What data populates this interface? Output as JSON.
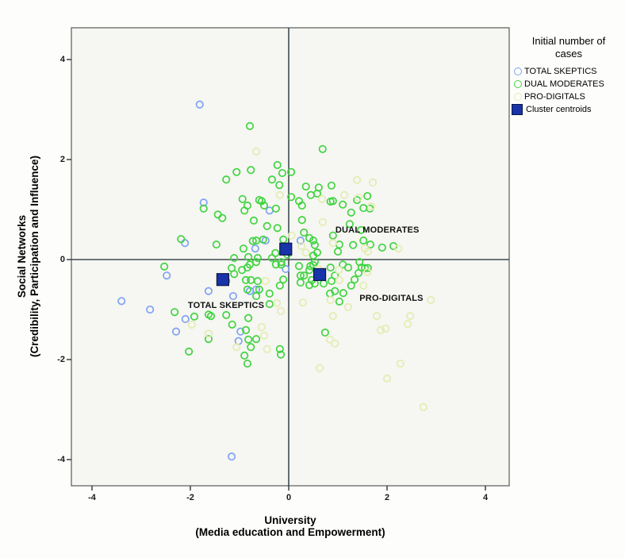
{
  "colors": {
    "skeptics": "#7fa3f2",
    "moderates": "#41d441",
    "digitals": "#e3edb2",
    "centroid": "#1834a8",
    "centroid_border": "#0a1747",
    "axis_line": "#3d4c52",
    "frame": "#5a5a5a",
    "plot_bg": "#f6f6f2",
    "text": "#000000"
  },
  "legend": {
    "title_line1": "Initial number of",
    "title_line2": "cases",
    "items": [
      {
        "label": "TOTAL SKEPTICS",
        "marker": "open-circle",
        "color": "#7fa3f2"
      },
      {
        "label": "DUAL MODERATES",
        "marker": "open-circle",
        "color": "#41d441"
      },
      {
        "label": "PRO-DIGITALS",
        "marker": "open-circle",
        "color": "#e3edb2"
      },
      {
        "label": "Cluster centroids",
        "marker": "filled-square",
        "color": "#1834a8"
      }
    ]
  },
  "axes": {
    "x_title_line1": "University",
    "x_title_line2": "(Media education and Empowerment)",
    "y_title_line1": "Social Networks",
    "y_title_line2": "(Credibility, Participation and Influence)"
  },
  "chart_data": {
    "type": "scatter",
    "xlabel": "University (Media education and Empowerment)",
    "ylabel": "Social Networks (Credibility, Participation and Influence)",
    "xlim": [
      -4.4,
      4.5
    ],
    "ylim": [
      -4.6,
      4.65
    ],
    "xticks": [
      -4,
      -2,
      0,
      2,
      4
    ],
    "yticks": [
      -4,
      -2,
      0,
      2,
      4
    ],
    "reference_lines": {
      "x": 0,
      "y": 0
    },
    "grid": false,
    "legend_position": "top-right",
    "annotations": [
      {
        "text": "DUAL MODERATES",
        "x": 0.95,
        "y": 0.59
      },
      {
        "text": "TOTAL SKEPTICS",
        "x": -2.05,
        "y": -0.92
      },
      {
        "text": "PRO-DIGITALS",
        "x": 1.44,
        "y": -0.78
      }
    ],
    "series": [
      {
        "name": "TOTAL SKEPTICS",
        "marker": "open-circle",
        "color": "#7fa3f2",
        "points": [
          [
            -1.81,
            3.1
          ],
          [
            -1.73,
            1.14
          ],
          [
            -2.11,
            0.33
          ],
          [
            -2.48,
            -0.32
          ],
          [
            -1.63,
            -0.63
          ],
          [
            -3.4,
            -0.83
          ],
          [
            -2.82,
            -1.0
          ],
          [
            -2.1,
            -1.19
          ],
          [
            -2.29,
            -1.44
          ],
          [
            -0.39,
            0.98
          ],
          [
            -0.47,
            0.38
          ],
          [
            0.24,
            0.38
          ],
          [
            -0.68,
            0.22
          ],
          [
            -0.79,
            -0.63
          ],
          [
            -1.13,
            -0.73
          ],
          [
            -0.66,
            -0.6
          ],
          [
            -0.98,
            -1.44
          ],
          [
            -1.02,
            -1.63
          ],
          [
            -1.16,
            -3.94
          ],
          [
            -0.06,
            -0.19
          ]
        ]
      },
      {
        "name": "DUAL MODERATES",
        "marker": "open-circle",
        "color": "#41d441",
        "points": [
          [
            -0.79,
            2.67
          ],
          [
            0.69,
            2.21
          ],
          [
            -1.06,
            1.75
          ],
          [
            -0.77,
            1.79
          ],
          [
            -0.23,
            1.89
          ],
          [
            -1.27,
            1.6
          ],
          [
            -0.34,
            1.6
          ],
          [
            -0.13,
            1.73
          ],
          [
            0.05,
            1.75
          ],
          [
            -0.19,
            1.49
          ],
          [
            0.35,
            1.46
          ],
          [
            0.87,
            1.48
          ],
          [
            0.61,
            1.44
          ],
          [
            -0.94,
            1.21
          ],
          [
            -0.55,
            1.17
          ],
          [
            0.05,
            1.25
          ],
          [
            0.21,
            1.17
          ],
          [
            0.45,
            1.29
          ],
          [
            0.58,
            1.32
          ],
          [
            0.85,
            1.16
          ],
          [
            1.6,
            1.27
          ],
          [
            -0.84,
            1.08
          ],
          [
            -0.6,
            1.19
          ],
          [
            -0.5,
            1.08
          ],
          [
            -0.26,
            1.02
          ],
          [
            0.27,
            1.08
          ],
          [
            0.9,
            1.17
          ],
          [
            1.1,
            1.1
          ],
          [
            1.39,
            1.19
          ],
          [
            1.52,
            1.03
          ],
          [
            1.27,
            0.94
          ],
          [
            -1.35,
            0.83
          ],
          [
            -0.9,
            0.98
          ],
          [
            -0.71,
            0.78
          ],
          [
            -0.44,
            0.67
          ],
          [
            -0.23,
            0.63
          ],
          [
            -1.44,
            0.9
          ],
          [
            -1.73,
            1.02
          ],
          [
            -1.47,
            0.3
          ],
          [
            -2.19,
            0.41
          ],
          [
            -0.52,
            0.4
          ],
          [
            -0.66,
            0.38
          ],
          [
            -0.11,
            0.4
          ],
          [
            0.27,
            0.79
          ],
          [
            0.31,
            0.54
          ],
          [
            0.42,
            0.43
          ],
          [
            0.5,
            0.38
          ],
          [
            0.53,
            0.29
          ],
          [
            0.58,
            0.14
          ],
          [
            0.5,
            0.08
          ],
          [
            0.9,
            0.48
          ],
          [
            1.24,
            0.71
          ],
          [
            1.47,
            0.59
          ],
          [
            1.03,
            0.3
          ],
          [
            1.0,
            0.16
          ],
          [
            1.31,
            0.29
          ],
          [
            1.52,
            0.38
          ],
          [
            -0.03,
            0.1
          ],
          [
            -0.27,
            0.13
          ],
          [
            -0.73,
            0.37
          ],
          [
            -0.92,
            0.22
          ],
          [
            -1.11,
            0.03
          ],
          [
            -0.82,
            0.05
          ],
          [
            -0.63,
            0.03
          ],
          [
            -0.34,
            0.03
          ],
          [
            -0.26,
            -0.1
          ],
          [
            -0.15,
            -0.05
          ],
          [
            0.53,
            -0.05
          ],
          [
            0.44,
            -0.13
          ],
          [
            0.31,
            -0.32
          ],
          [
            0.47,
            -0.41
          ],
          [
            0.24,
            -0.46
          ],
          [
            0.85,
            -0.16
          ],
          [
            0.94,
            -0.32
          ],
          [
            1.1,
            -0.1
          ],
          [
            1.21,
            -0.16
          ],
          [
            1.42,
            -0.27
          ],
          [
            1.55,
            -0.17
          ],
          [
            1.27,
            -0.52
          ],
          [
            -0.84,
            -0.16
          ],
          [
            -1.11,
            -0.29
          ],
          [
            -1.27,
            -0.43
          ],
          [
            -0.87,
            -0.41
          ],
          [
            -0.63,
            -0.43
          ],
          [
            -0.11,
            -0.4
          ],
          [
            -0.18,
            -0.52
          ],
          [
            -0.84,
            -0.6
          ],
          [
            -0.39,
            -0.68
          ],
          [
            -1.16,
            -0.17
          ],
          [
            -0.95,
            -0.21
          ],
          [
            -0.79,
            -0.1
          ],
          [
            -0.66,
            -0.05
          ],
          [
            -0.15,
            -0.1
          ],
          [
            -0.77,
            -0.41
          ],
          [
            -0.6,
            -0.6
          ],
          [
            -0.66,
            -0.73
          ],
          [
            -0.39,
            -0.89
          ],
          [
            -0.82,
            -1.17
          ],
          [
            -1.27,
            -1.11
          ],
          [
            -1.15,
            -1.3
          ],
          [
            -0.87,
            -1.41
          ],
          [
            -0.82,
            -1.6
          ],
          [
            -0.66,
            -1.59
          ],
          [
            -0.77,
            -1.75
          ],
          [
            -0.18,
            -1.79
          ],
          [
            -0.16,
            -1.9
          ],
          [
            -0.9,
            -1.92
          ],
          [
            -0.84,
            -2.08
          ],
          [
            0.21,
            -0.13
          ],
          [
            0.24,
            -0.32
          ],
          [
            0.42,
            -0.21
          ],
          [
            0.5,
            -0.11
          ],
          [
            0.53,
            -0.48
          ],
          [
            0.71,
            -0.48
          ],
          [
            0.42,
            -0.51
          ],
          [
            0.87,
            -0.43
          ],
          [
            0.94,
            -0.63
          ],
          [
            0.84,
            -0.68
          ],
          [
            1.03,
            -0.84
          ],
          [
            0.74,
            -1.46
          ],
          [
            1.48,
            -0.16
          ],
          [
            1.34,
            -0.4
          ],
          [
            1.44,
            -0.05
          ],
          [
            1.11,
            -0.67
          ],
          [
            1.65,
            1.02
          ],
          [
            1.66,
            0.3
          ],
          [
            1.9,
            0.24
          ],
          [
            2.13,
            0.27
          ],
          [
            1.61,
            -0.17
          ],
          [
            -2.53,
            -0.14
          ],
          [
            -2.32,
            -1.05
          ],
          [
            -1.92,
            -1.14
          ],
          [
            -1.58,
            -1.13
          ],
          [
            -1.63,
            -1.59
          ],
          [
            -2.03,
            -1.84
          ],
          [
            -1.63,
            -1.1
          ]
        ]
      },
      {
        "name": "PRO-DIGITALS",
        "marker": "open-circle",
        "color": "#e3edb2",
        "points": [
          [
            -0.66,
            2.16
          ],
          [
            1.39,
            1.59
          ],
          [
            -0.18,
            1.29
          ],
          [
            0.68,
            1.21
          ],
          [
            1.13,
            1.29
          ],
          [
            1.42,
            1.24
          ],
          [
            1.71,
            1.54
          ],
          [
            1.68,
            1.06
          ],
          [
            0.69,
            0.75
          ],
          [
            0.26,
            0.27
          ],
          [
            0.35,
            0.14
          ],
          [
            0.61,
            -0.19
          ],
          [
            0.9,
            0.33
          ],
          [
            1.55,
            0.22
          ],
          [
            1.61,
            0.16
          ],
          [
            2.23,
            0.22
          ],
          [
            0.06,
            0.48
          ],
          [
            -0.47,
            -0.43
          ],
          [
            -0.24,
            -0.87
          ],
          [
            -0.16,
            -1.03
          ],
          [
            -0.55,
            -1.35
          ],
          [
            -0.5,
            -1.52
          ],
          [
            -1.06,
            -1.75
          ],
          [
            -0.44,
            -1.79
          ],
          [
            0.29,
            -0.86
          ],
          [
            0.85,
            -0.81
          ],
          [
            0.9,
            -1.13
          ],
          [
            0.84,
            -1.6
          ],
          [
            0.94,
            -1.68
          ],
          [
            0.63,
            -2.17
          ],
          [
            1.02,
            -0.21
          ],
          [
            1.6,
            -0.25
          ],
          [
            1.21,
            -0.95
          ],
          [
            1.03,
            -0.41
          ],
          [
            1.52,
            -0.52
          ],
          [
            2.89,
            -0.81
          ],
          [
            1.79,
            -1.13
          ],
          [
            2.47,
            -1.13
          ],
          [
            2.42,
            -1.29
          ],
          [
            1.87,
            -1.41
          ],
          [
            1.97,
            -1.38
          ],
          [
            2.27,
            -2.08
          ],
          [
            2.0,
            -2.38
          ],
          [
            2.74,
            -2.95
          ],
          [
            -1.97,
            -1.3
          ],
          [
            -1.63,
            -1.48
          ]
        ]
      },
      {
        "name": "Cluster centroids",
        "marker": "filled-square",
        "color": "#1834a8",
        "points": [
          [
            -0.06,
            0.21
          ],
          [
            -1.34,
            -0.4
          ],
          [
            0.63,
            -0.3
          ]
        ]
      }
    ]
  }
}
